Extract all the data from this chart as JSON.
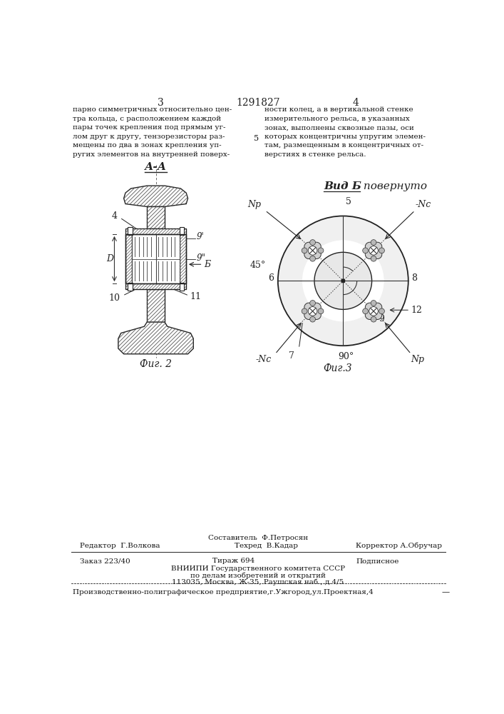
{
  "bg_color": "#ffffff",
  "page_header": {
    "left_num": "3",
    "center_text": "1291827",
    "right_num": "4"
  },
  "text_left": "парно симметричных относительно цен-\nтра кольца, с расположением каждой\nпары точек крепления под прямым уг-\nлом друг к другу, тензорезисторы раз-\nмещены по два в зонах крепления уп-\nругих элементов на внутренней поверх-",
  "text_right": "ности колец, а в вертикальной стенке\nизмерительного рельса, в указанных\nзонах, выполнены сквозные пазы, оси\nкоторых концентричны упругим элемен-\nтам, размещенным в концентричных от-\nверстиях в стенке рельса.",
  "line_5": "5",
  "fig2_label": "А-А",
  "fig3_label_bold": "Вид Б",
  "fig3_label_normal": " повернуто",
  "fig2_caption": "Фиг. 2",
  "fig3_caption": "Фиг.3",
  "footer_composer": "Составитель  Ф.Петросян",
  "footer_editor": "Редактор  Г.Волкова",
  "footer_tech": "Техред  В.Кадар",
  "footer_corrector": "Корректор А.Обручар",
  "footer_order": "Заказ 223/40",
  "footer_print": "Тираж 694",
  "footer_sub": "Подписное",
  "footer_org1": "ВНИИПИ Государственного комитета СССР",
  "footer_org2": "по делам изобретений и открытий",
  "footer_org3": "113035, Москва, Ж-35, Раушская наб., д.4/5",
  "footer_prod": "Производственно-полиграфическое предприятие,г.Ужгород,ул.Проектная,4"
}
